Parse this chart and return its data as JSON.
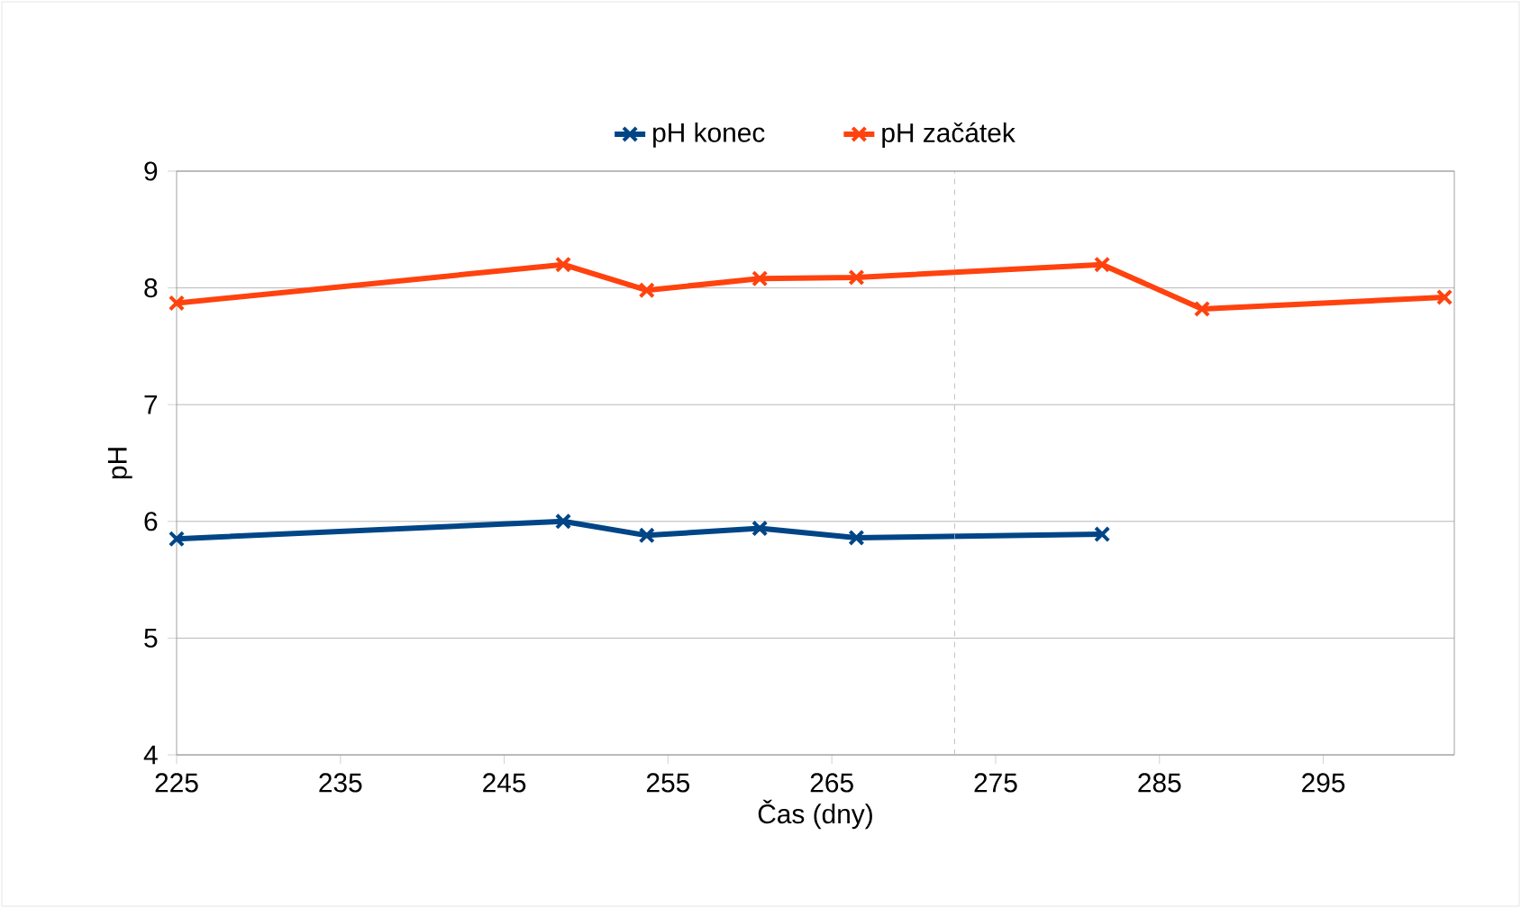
{
  "chart_data": {
    "type": "line",
    "xlabel": "Čas (dny)",
    "ylabel": "pH",
    "xlim": [
      225,
      303
    ],
    "xticks": [
      225,
      235,
      245,
      255,
      265,
      275,
      285,
      295
    ],
    "ylim": [
      4,
      9
    ],
    "yticks": [
      4,
      5,
      6,
      7,
      8,
      9
    ],
    "grid": "y",
    "legend": "top",
    "marker": "cross",
    "line_style": "solid",
    "series": [
      {
        "name": "pH konec",
        "color": "#004586",
        "x": [
          225,
          248.6,
          253.7,
          260.6,
          266.5,
          281.5
        ],
        "values": [
          5.85,
          6.0,
          5.88,
          5.94,
          5.86,
          5.89
        ]
      },
      {
        "name": "pH začátek",
        "color": "#ff420e",
        "x": [
          225,
          248.6,
          253.7,
          260.6,
          266.5,
          281.5,
          287.6,
          302.4
        ],
        "values": [
          7.87,
          8.2,
          7.98,
          8.08,
          8.09,
          8.2,
          7.82,
          7.92
        ]
      }
    ],
    "ref_lines": [
      {
        "axis": "x",
        "value": 272.5,
        "color": "#b3b3b3",
        "line_style": "dashed"
      }
    ]
  }
}
